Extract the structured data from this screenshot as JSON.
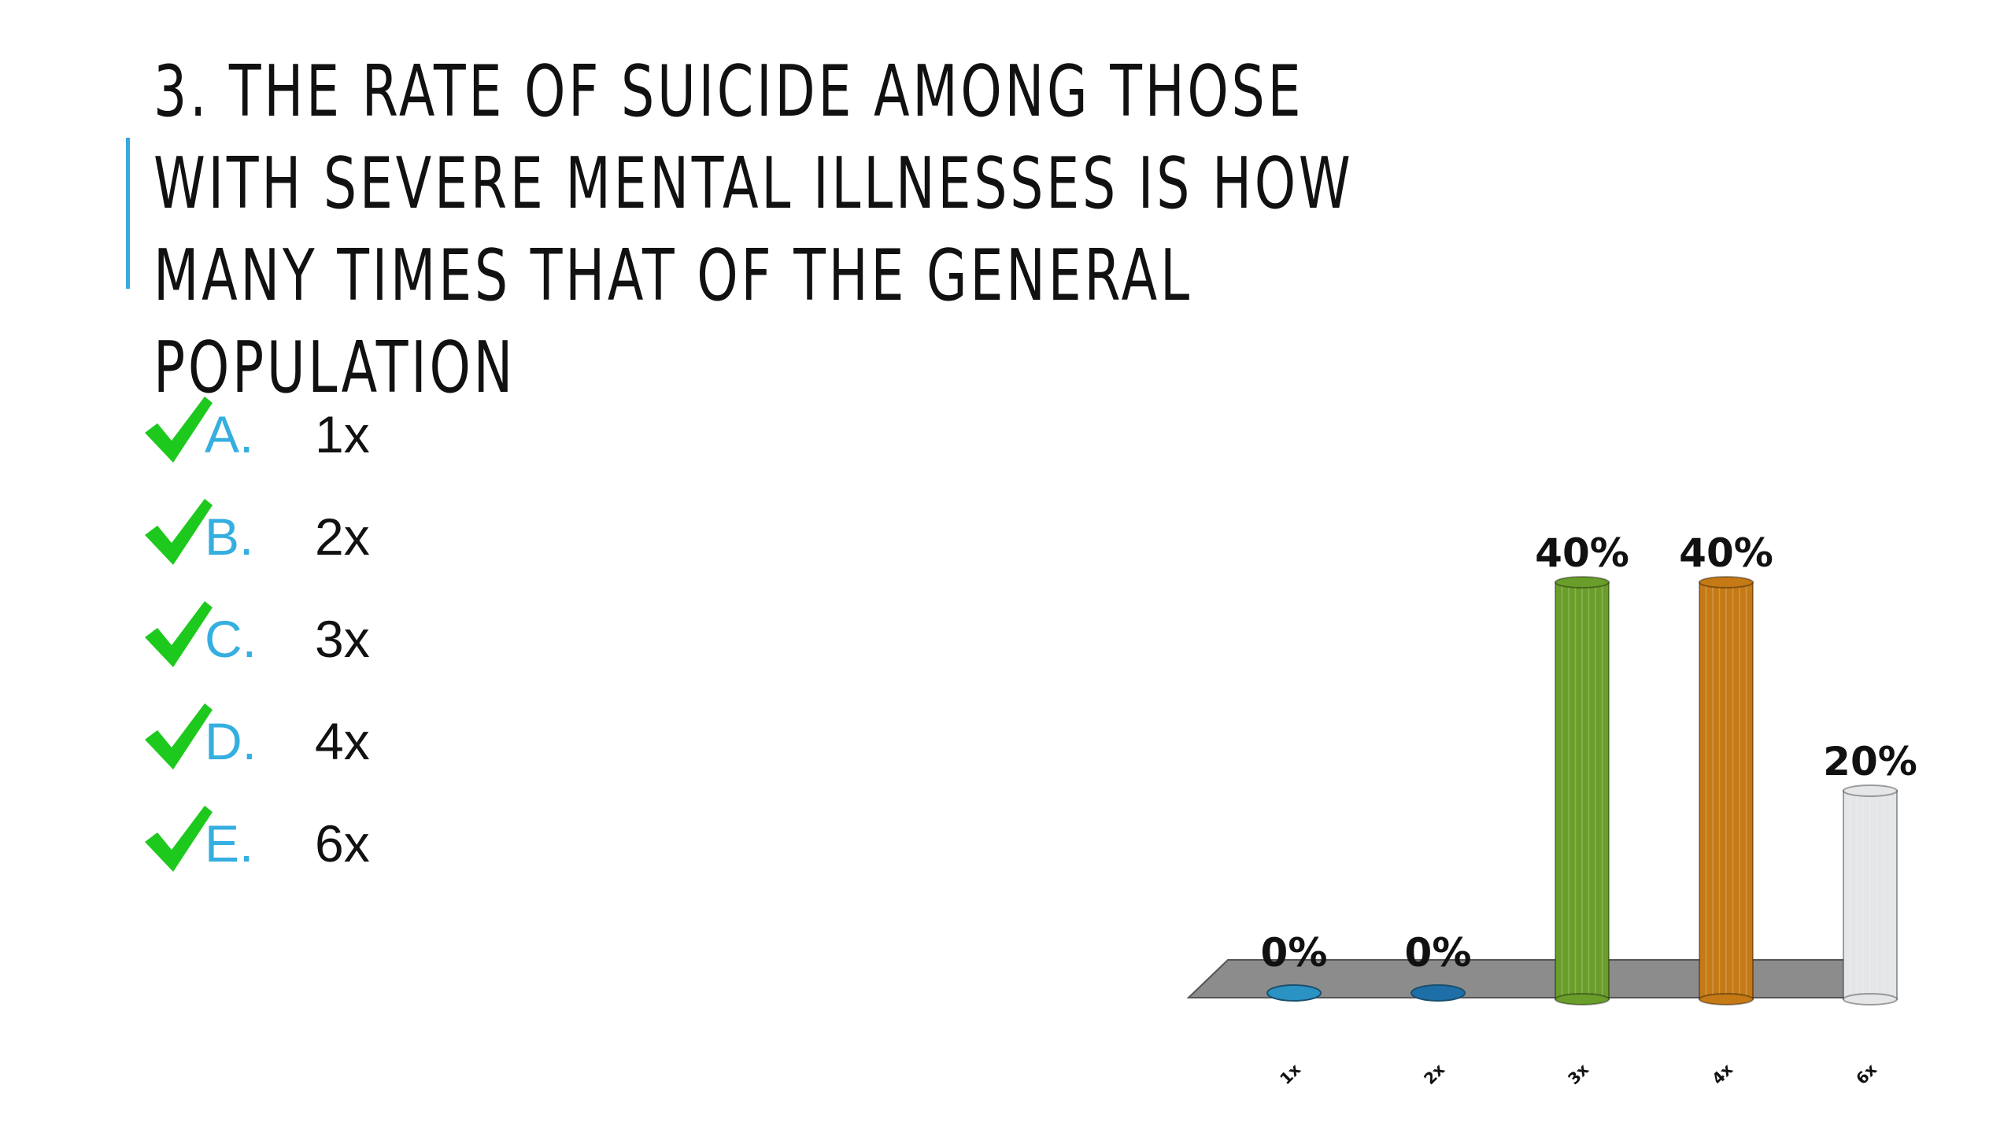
{
  "slide": {
    "title": "3. THE RATE OF SUICIDE AMONG THOSE WITH SEVERE MENTAL ILLNESSES IS HOW MANY TIMES THAT OF THE GENERAL POPULATION",
    "accent_color": "#3aa8dc",
    "options": [
      {
        "letter": "A.",
        "text": "1x",
        "icon": "checkmark-icon"
      },
      {
        "letter": "B.",
        "text": "2x",
        "icon": "checkmark-icon"
      },
      {
        "letter": "C.",
        "text": "3x",
        "icon": "checkmark-icon"
      },
      {
        "letter": "D.",
        "text": "4x",
        "icon": "checkmark-icon"
      },
      {
        "letter": "E.",
        "text": "6x",
        "icon": "checkmark-icon"
      }
    ],
    "check_color": "#1ec91e",
    "letter_color": "#35aee0"
  },
  "chart_data": {
    "type": "bar",
    "categories": [
      "1x",
      "2x",
      "3x",
      "4x",
      "6x"
    ],
    "values": [
      0,
      0,
      40,
      40,
      20
    ],
    "value_labels": [
      "0%",
      "0%",
      "40%",
      "40%",
      "20%"
    ],
    "ylim": [
      0,
      40
    ],
    "colors": [
      "#2a93c4",
      "#1e6fa8",
      "#6a9e2a",
      "#c57a16",
      "#e4e6e8"
    ],
    "floor_color": "#8c8c8c",
    "grid": false,
    "legend": "none",
    "title": "",
    "xlabel": "",
    "ylabel": ""
  }
}
